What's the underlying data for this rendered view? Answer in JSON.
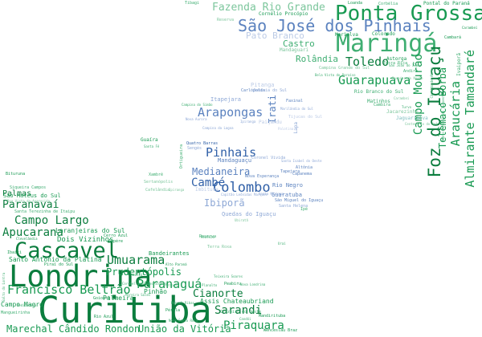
{
  "words": [
    {
      "text": "Curitiba",
      "style": "g1"
    },
    {
      "text": "Londrina",
      "style": "g1"
    },
    {
      "text": "Cascavel",
      "style": "g1"
    },
    {
      "text": "Maringá",
      "style": "g3"
    },
    {
      "text": "Ponta Grossa",
      "style": "g2"
    },
    {
      "text": "Foz do Iguaçu",
      "style": "g1"
    },
    {
      "text": "São José dos Pinhais",
      "style": "b2"
    },
    {
      "text": "Colombo",
      "style": "b1"
    },
    {
      "text": "Guarapuava",
      "style": "g2"
    },
    {
      "text": "Paranaguá",
      "style": "g2"
    },
    {
      "text": "Umuarama",
      "style": "g1"
    },
    {
      "text": "Francisco Beltrão",
      "style": "g2"
    },
    {
      "text": "Apucarana",
      "style": "g1"
    },
    {
      "text": "Campo Largo",
      "style": "g1"
    },
    {
      "text": "Toledo",
      "style": "g1"
    },
    {
      "text": "Arapongas",
      "style": "b2"
    },
    {
      "text": "Pinhais",
      "style": "b1"
    },
    {
      "text": "Araucária",
      "style": "g2"
    },
    {
      "text": "Almirante Tamandaré",
      "style": "g2"
    },
    {
      "text": "Sarandi",
      "style": "g1"
    },
    {
      "text": "Piraquara",
      "style": "g2"
    },
    {
      "text": "Cambé",
      "style": "b1"
    },
    {
      "text": "Campo Mourão",
      "style": "g2"
    },
    {
      "text": "Fazenda Rio Grande",
      "style": "g4"
    },
    {
      "text": "Paranavaí",
      "style": "g1"
    },
    {
      "text": "Telêmaco Borba",
      "style": "g2"
    },
    {
      "text": "Cianorte",
      "style": "g1"
    },
    {
      "text": "Prudentópolis",
      "style": "g2"
    },
    {
      "text": "União da Vitória",
      "style": "g2"
    },
    {
      "text": "Marechal Cândido Rondon",
      "style": "g2"
    },
    {
      "text": "Medianeira",
      "style": "b2"
    },
    {
      "text": "Ibiporã",
      "style": "b3"
    },
    {
      "text": "Irati",
      "style": "b2"
    },
    {
      "text": "Rolândia",
      "style": "g3"
    },
    {
      "text": "Castro",
      "style": "g3"
    },
    {
      "text": "Pato Branco",
      "style": "b4"
    },
    {
      "text": "Palmas",
      "style": "g1"
    },
    {
      "text": "Dois Vizinhos",
      "style": "g2"
    },
    {
      "text": "Laranjeiras do Sul",
      "style": "g2"
    },
    {
      "text": "Santo Antônio da Platina",
      "style": "g2"
    },
    {
      "text": "Campo Magro",
      "style": "g2"
    },
    {
      "text": "Pinhão",
      "style": "g2"
    },
    {
      "text": "Bandeirantes",
      "style": "g2"
    },
    {
      "text": "Assis Chateaubriand",
      "style": "g2"
    },
    {
      "text": "Palmeira",
      "style": "g2"
    },
    {
      "text": "Rio Negro",
      "style": "b2"
    },
    {
      "text": "Guaratuba",
      "style": "b2"
    },
    {
      "text": "Mandaguaçu",
      "style": "b2"
    },
    {
      "text": "Quedas do Iguaçu",
      "style": "b3"
    },
    {
      "text": "São Mateus do Sul",
      "style": "g2"
    },
    {
      "text": "Itapejara",
      "style": "b3"
    },
    {
      "text": "Pitanga",
      "style": "b4"
    },
    {
      "text": "Mandaguari",
      "style": "g4"
    },
    {
      "text": "Marialva",
      "style": "g2"
    },
    {
      "text": "Colorado",
      "style": "g2"
    },
    {
      "text": "Astorga",
      "style": "g2"
    },
    {
      "text": "Cornélio Procópio",
      "style": "g2"
    },
    {
      "text": "Pontal do Paraná",
      "style": "g2"
    },
    {
      "text": "Ivaiporã",
      "style": "g3"
    },
    {
      "text": "Matinhos",
      "style": "g3"
    },
    {
      "text": "Rio Branco do Sul",
      "style": "g3"
    },
    {
      "text": "Jacarezinho",
      "style": "g4"
    },
    {
      "text": "Jaguariaíva",
      "style": "t2"
    },
    {
      "text": "Paiçandu",
      "style": "b4"
    },
    {
      "text": "Lapa",
      "style": "b3"
    },
    {
      "text": "Guaíra",
      "style": "g2"
    },
    {
      "text": "Ortigueira",
      "style": "g3"
    },
    {
      "text": "Imbituva",
      "style": "b4"
    },
    {
      "text": "Carambeí",
      "style": "g2"
    },
    {
      "text": "Quatro Barras",
      "style": "b1"
    },
    {
      "text": "Santa Helena",
      "style": "b3"
    },
    {
      "text": "Ibaiti",
      "style": "g2"
    },
    {
      "text": "Tijucas do Sul",
      "style": "b4"
    },
    {
      "text": "Siqueira Campos",
      "style": "g3"
    },
    {
      "text": "Reserva",
      "style": "g4"
    },
    {
      "text": "Santa Terezinha de Itaipu",
      "style": "g3"
    },
    {
      "text": "Sengés",
      "style": "b3"
    },
    {
      "text": "Bituruna",
      "style": "g2"
    },
    {
      "text": "Sertanópolis",
      "style": "g4"
    },
    {
      "text": "Coronel Vivida",
      "style": "b3"
    },
    {
      "text": "Tapejara",
      "style": "b2"
    },
    {
      "text": "Altônia",
      "style": "b2"
    },
    {
      "text": "Capanema",
      "style": "b2"
    },
    {
      "text": "Loanda",
      "style": "g2"
    },
    {
      "text": "Cambará",
      "style": "g2"
    },
    {
      "text": "Nova Esperança",
      "style": "b2"
    },
    {
      "text": "São Miguel do Iguaçu",
      "style": "b2"
    },
    {
      "text": "Ampére",
      "style": "g2"
    },
    {
      "text": "Cerro Azul",
      "style": "g2"
    },
    {
      "text": "Wenceslau Braz",
      "style": "g2"
    },
    {
      "text": "Mandirituba",
      "style": "g2"
    },
    {
      "text": "Piraí do Sul",
      "style": "g2"
    },
    {
      "text": "Goioerê",
      "style": "g2"
    },
    {
      "text": "Reserva",
      "style": "g3"
    },
    {
      "text": "Rio Azul",
      "style": "g2"
    },
    {
      "text": "Pérola",
      "style": "g2"
    },
    {
      "text": "Peabiru",
      "style": "g2"
    },
    {
      "text": "Cruzeiro do Oeste",
      "style": "g3"
    },
    {
      "text": "Jandaia do Sul",
      "style": "b3"
    },
    {
      "text": "Cafelândia",
      "style": "g4"
    },
    {
      "text": "Andirá",
      "style": "g3"
    },
    {
      "text": "Terra Roxa",
      "style": "g4"
    },
    {
      "text": "Terra Rica",
      "style": "g3"
    },
    {
      "text": "Cambira",
      "style": "g3"
    },
    {
      "text": "Capitão Leônidas Marques",
      "style": "b3"
    },
    {
      "text": "Corbélia",
      "style": "g3"
    },
    {
      "text": "Faxinal",
      "style": "b2"
    },
    {
      "text": "Carlópolis",
      "style": "b2"
    },
    {
      "text": "Xambrê",
      "style": "g3"
    },
    {
      "text": "Tibagi",
      "style": "g3"
    },
    {
      "text": "Ipiranga",
      "style": "b3"
    },
    {
      "text": "Marilândia do Sul",
      "style": "b3"
    },
    {
      "text": "Santo Antônio do Sudoeste",
      "style": "g3"
    },
    {
      "text": "Santa Isabel do Oeste",
      "style": "b3"
    },
    {
      "text": "Ipê",
      "style": "g3"
    },
    {
      "text": "Cândido de Abreu",
      "style": "g3"
    },
    {
      "text": "Centenário do Sul",
      "style": "g4"
    },
    {
      "text": "Campina do Simão",
      "style": "g3"
    },
    {
      "text": "Salto do Lontra",
      "style": "g3"
    },
    {
      "text": "Mangueirinha",
      "style": "g3"
    },
    {
      "text": "Clevelândia",
      "style": "g2"
    },
    {
      "text": "Realeza",
      "style": "g3"
    },
    {
      "text": "Boa Vista da Aparecida",
      "style": "g4"
    },
    {
      "text": "Bela Vista do Paraíso",
      "style": "g3"
    },
    {
      "text": "Nova Londrina",
      "style": "g3"
    },
    {
      "text": "Ipiranga",
      "style": "g4"
    },
    {
      "text": "Alto Paraná",
      "style": "g2"
    },
    {
      "text": "Campina Grande do Sul",
      "style": "g4"
    },
    {
      "text": "São João do Ivaí",
      "style": "g3"
    },
    {
      "text": "Uraí",
      "style": "g3"
    },
    {
      "text": "Planalto",
      "style": "g3"
    },
    {
      "text": "Nova Aurora",
      "style": "b3"
    },
    {
      "text": "Santa Fé",
      "style": "g3"
    },
    {
      "text": "Paraíso do Norte",
      "style": "g4"
    },
    {
      "text": "Moreira Sales",
      "style": "g3"
    },
    {
      "text": "Palotina",
      "style": "b4"
    },
    {
      "text": "Candói",
      "style": "g3"
    },
    {
      "text": "Campina da Lagoa",
      "style": "b3"
    },
    {
      "text": "Arapoti",
      "style": "g3"
    },
    {
      "text": "Nova Santa Rosa",
      "style": "g3"
    },
    {
      "text": "Santa Mariana",
      "style": "b3"
    },
    {
      "text": "Medianeira",
      "style": "g3"
    },
    {
      "text": "Turvo",
      "style": "g3"
    },
    {
      "text": "Ubiratã",
      "style": "g4"
    },
    {
      "text": "Abatiá",
      "style": "g3"
    },
    {
      "text": "Carambeí",
      "style": "g4"
    },
    {
      "text": "Coronel Domingos Soares",
      "style": "g3"
    },
    {
      "text": "Manoel Ribas",
      "style": "g3"
    },
    {
      "text": "Teixeira Soares",
      "style": "g3"
    }
  ]
}
